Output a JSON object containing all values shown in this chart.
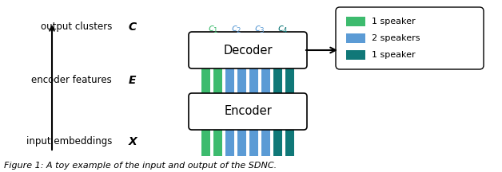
{
  "title": "Figure 1: A toy example of the input and output of the SDNC.",
  "bar_colors": [
    "#3dbb6e",
    "#3dbb6e",
    "#5b9bd5",
    "#5b9bd5",
    "#5b9bd5",
    "#5b9bd5",
    "#107878",
    "#107878"
  ],
  "c_labels": [
    "1",
    "2",
    "3",
    "4"
  ],
  "c_colors": [
    "#3dbb6e",
    "#5b9bd5",
    "#5b9bd5",
    "#107878"
  ],
  "legend_colors": [
    "#3dbb6e",
    "#5b9bd5",
    "#107878"
  ],
  "legend_labels": [
    "1 speaker",
    "2 speakers",
    "1 speaker"
  ],
  "background": "#ffffff"
}
